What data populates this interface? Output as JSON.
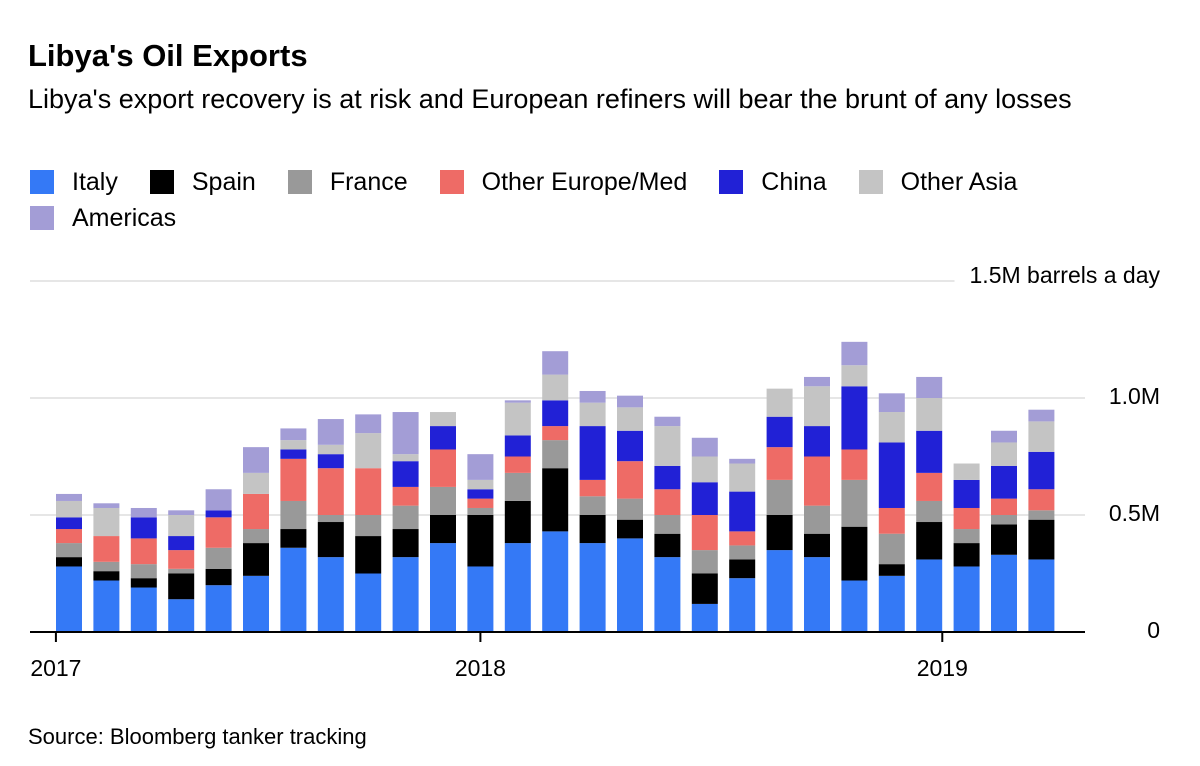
{
  "chart_data": {
    "type": "stacked_bar",
    "title": "Libya's Oil Exports",
    "subtitle": "Libya's export recovery is at risk and European refiners will bear the brunt of any losses",
    "source": "Source: Bloomberg tanker tracking",
    "categories": [
      null,
      null,
      null,
      null,
      null,
      null,
      null,
      null,
      null,
      null,
      null,
      null,
      null,
      null,
      null,
      null,
      null,
      null,
      null,
      null,
      null,
      null,
      null,
      null,
      null,
      null,
      null
    ],
    "xticks": [
      {
        "value": -0.35,
        "label": "2017"
      },
      {
        "value": 11,
        "label": "2018"
      },
      {
        "value": 23.35,
        "label": "2019"
      }
    ],
    "ylim": [
      0,
      1500000
    ],
    "yticks": [
      {
        "value": 0,
        "label": "0"
      },
      {
        "value": 500000,
        "label": "0.5M"
      },
      {
        "value": 1000000,
        "label": "1.0M"
      },
      {
        "value": 1500000,
        "label": "1.5M barrels a day"
      }
    ],
    "grid": true,
    "series": [
      {
        "name": "Italy",
        "color": "#3479f6",
        "values": [
          280000,
          220000,
          190000,
          140000,
          200000,
          240000,
          360000,
          320000,
          250000,
          320000,
          380000,
          280000,
          380000,
          430000,
          380000,
          400000,
          320000,
          120000,
          230000,
          350000,
          320000,
          220000,
          240000,
          310000,
          280000,
          330000,
          310000
        ]
      },
      {
        "name": "Spain",
        "color": "#000000",
        "values": [
          40000,
          40000,
          40000,
          110000,
          70000,
          140000,
          80000,
          150000,
          160000,
          120000,
          120000,
          220000,
          180000,
          270000,
          120000,
          80000,
          100000,
          130000,
          80000,
          150000,
          100000,
          230000,
          50000,
          160000,
          100000,
          130000,
          170000
        ]
      },
      {
        "name": "France",
        "color": "#999999",
        "values": [
          60000,
          40000,
          60000,
          20000,
          90000,
          60000,
          120000,
          30000,
          90000,
          100000,
          120000,
          30000,
          120000,
          120000,
          80000,
          90000,
          80000,
          100000,
          60000,
          150000,
          120000,
          200000,
          130000,
          90000,
          60000,
          40000,
          40000
        ]
      },
      {
        "name": "Other Europe/Med",
        "color": "#ee6b66",
        "values": [
          60000,
          110000,
          110000,
          80000,
          130000,
          150000,
          180000,
          200000,
          200000,
          80000,
          160000,
          40000,
          70000,
          60000,
          70000,
          160000,
          110000,
          150000,
          60000,
          140000,
          210000,
          130000,
          110000,
          120000,
          90000,
          70000,
          90000
        ]
      },
      {
        "name": "China",
        "color": "#2121d6",
        "values": [
          50000,
          0,
          90000,
          60000,
          30000,
          0,
          40000,
          60000,
          0,
          110000,
          100000,
          40000,
          90000,
          110000,
          230000,
          130000,
          100000,
          140000,
          170000,
          130000,
          130000,
          270000,
          280000,
          180000,
          120000,
          140000,
          160000
        ]
      },
      {
        "name": "Other Asia",
        "color": "#c4c4c4",
        "values": [
          70000,
          120000,
          0,
          90000,
          0,
          90000,
          40000,
          40000,
          150000,
          30000,
          60000,
          40000,
          140000,
          110000,
          100000,
          100000,
          170000,
          110000,
          120000,
          120000,
          170000,
          90000,
          130000,
          140000,
          70000,
          100000,
          130000
        ]
      },
      {
        "name": "Americas",
        "color": "#a39dd6",
        "values": [
          30000,
          20000,
          40000,
          20000,
          90000,
          110000,
          50000,
          110000,
          80000,
          180000,
          0,
          110000,
          10000,
          100000,
          50000,
          50000,
          40000,
          80000,
          20000,
          0,
          40000,
          100000,
          80000,
          90000,
          0,
          50000,
          50000
        ]
      }
    ]
  }
}
